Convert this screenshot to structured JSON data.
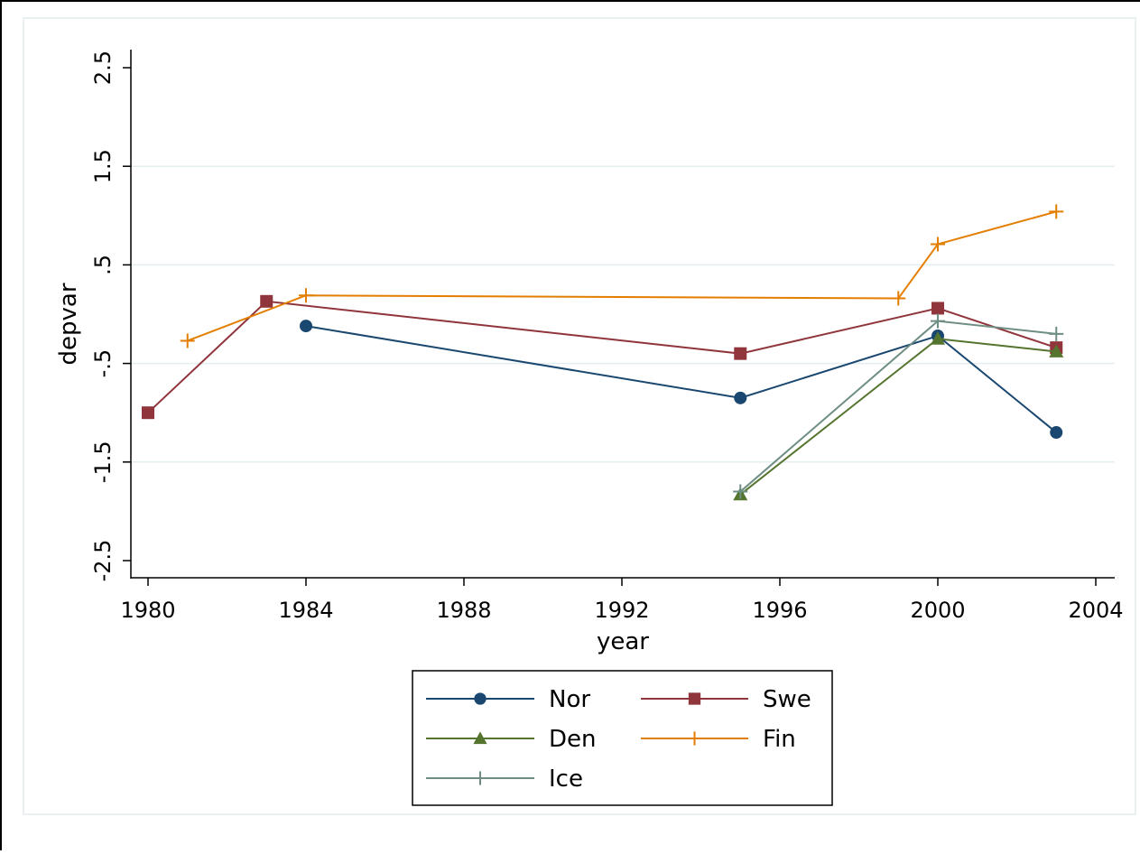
{
  "chart_data": {
    "type": "line",
    "xlabel": "year",
    "ylabel": "depvar",
    "xlim": [
      1980,
      2004
    ],
    "ylim": [
      -2.5,
      2.5
    ],
    "xticks": [
      1980,
      1984,
      1988,
      1992,
      1996,
      2000,
      2004
    ],
    "yticks": [
      -2.5,
      -1.5,
      -0.5,
      0.5,
      1.5,
      2.5
    ],
    "ytick_labels": [
      "-2.5",
      "-1.5",
      "-.5",
      ".5",
      "1.5",
      "2.5"
    ],
    "grid": "horizontal",
    "legend_position": "bottom",
    "series": [
      {
        "name": "Nor",
        "color": "#1a476f",
        "marker": "circle",
        "x": [
          1984,
          1995,
          2000,
          2003
        ],
        "y": [
          -0.12,
          -0.85,
          -0.22,
          -1.2
        ]
      },
      {
        "name": "Swe",
        "color": "#90353b",
        "marker": "square",
        "x": [
          1980,
          1983,
          1995,
          2000,
          2003
        ],
        "y": [
          -1.0,
          0.13,
          -0.4,
          0.06,
          -0.34
        ]
      },
      {
        "name": "Den",
        "color": "#55752f",
        "marker": "triangle",
        "x": [
          1995,
          2000,
          2003
        ],
        "y": [
          -1.83,
          -0.25,
          -0.38
        ]
      },
      {
        "name": "Fin",
        "color": "#e37e00",
        "marker": "plus",
        "x": [
          1981,
          1984,
          1999,
          2000,
          2003
        ],
        "y": [
          -0.27,
          0.19,
          0.16,
          0.71,
          1.04
        ]
      },
      {
        "name": "Ice",
        "color": "#6e8e84",
        "marker": "plus",
        "x": [
          1995,
          2000,
          2003
        ],
        "y": [
          -1.8,
          -0.07,
          -0.2
        ]
      }
    ]
  }
}
